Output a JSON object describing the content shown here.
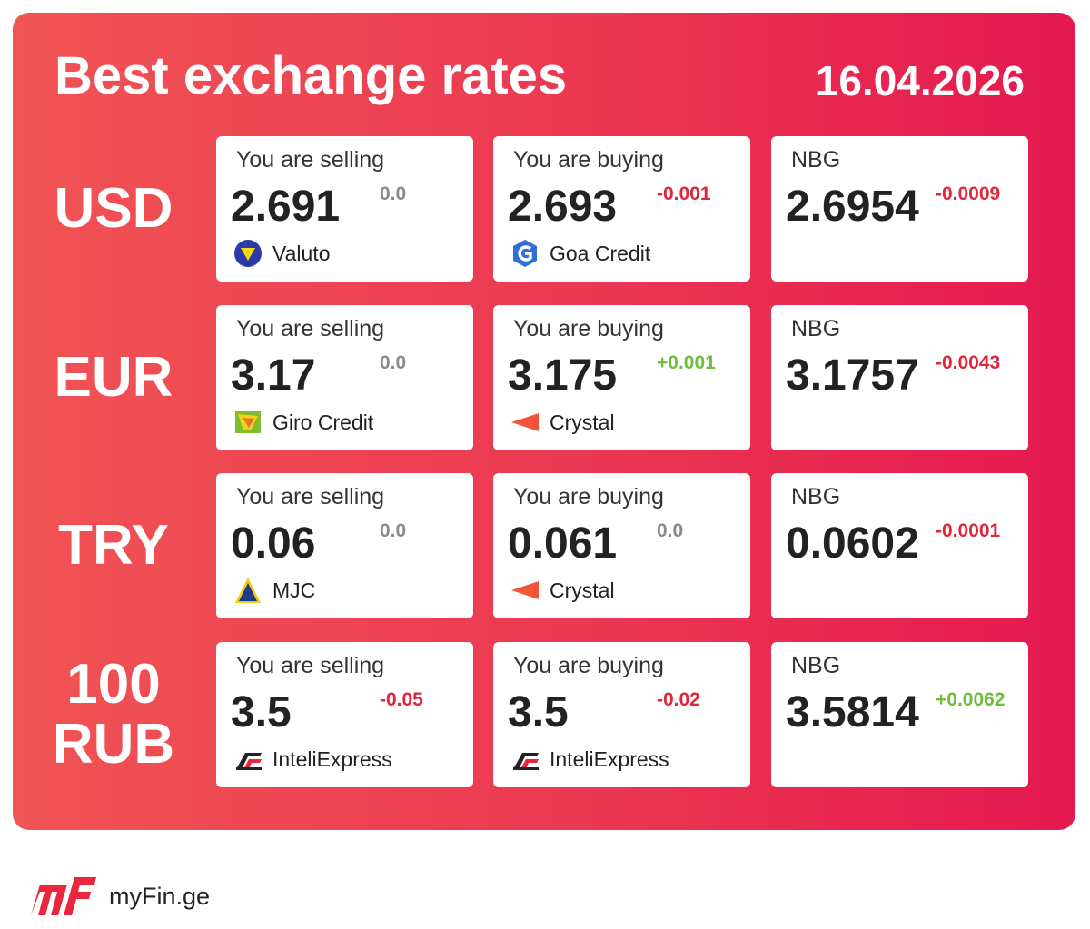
{
  "header": {
    "title": "Best exchange rates",
    "date": "16.04.2026"
  },
  "rows": [
    {
      "currency": "USD",
      "selling": {
        "label": "You are selling",
        "rate": "2.691",
        "change": "0.0",
        "provider": "Valuto"
      },
      "buying": {
        "label": "You are buying",
        "rate": "2.693",
        "change": "-0.001",
        "provider": "Goa Credit"
      },
      "nbg": {
        "label": "NBG",
        "rate": "2.6954",
        "change": "-0.0009"
      }
    },
    {
      "currency": "EUR",
      "selling": {
        "label": "You are selling",
        "rate": "3.17",
        "change": "0.0",
        "provider": "Giro Credit"
      },
      "buying": {
        "label": "You are buying",
        "rate": "3.175",
        "change": "+0.001",
        "provider": "Crystal"
      },
      "nbg": {
        "label": "NBG",
        "rate": "3.1757",
        "change": "-0.0043"
      }
    },
    {
      "currency": "TRY",
      "selling": {
        "label": "You are selling",
        "rate": "0.06",
        "change": "0.0",
        "provider": "MJC"
      },
      "buying": {
        "label": "You are buying",
        "rate": "0.061",
        "change": "0.0",
        "provider": "Crystal"
      },
      "nbg": {
        "label": "NBG",
        "rate": "0.0602",
        "change": "-0.0001"
      }
    },
    {
      "currency": "100 RUB",
      "selling": {
        "label": "You are selling",
        "rate": "3.5",
        "change": "-0.05",
        "provider": "InteliExpress"
      },
      "buying": {
        "label": "You are buying",
        "rate": "3.5",
        "change": "-0.02",
        "provider": "InteliExpress"
      },
      "nbg": {
        "label": "NBG",
        "rate": "3.5814",
        "change": "+0.0062"
      }
    }
  ],
  "footer": {
    "brand": "myFin.ge"
  }
}
